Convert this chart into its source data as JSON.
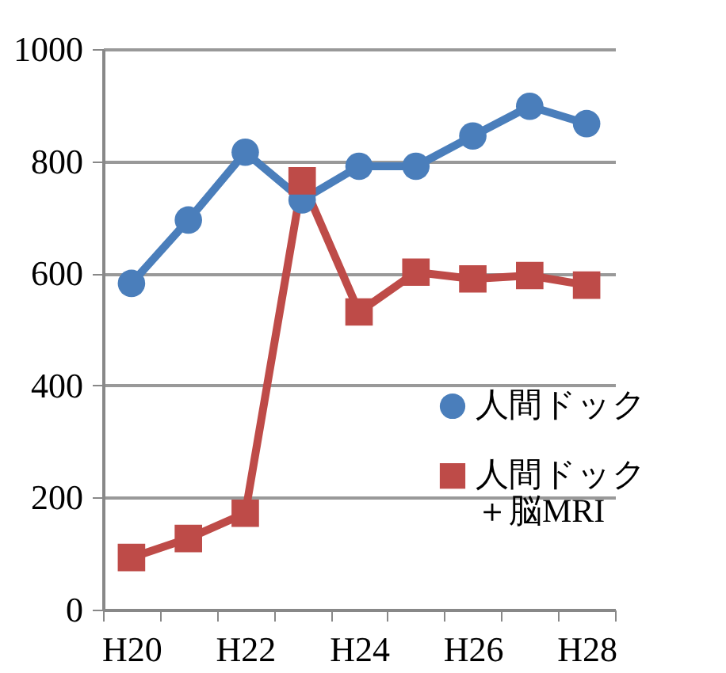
{
  "chart_data": {
    "type": "line",
    "categories": [
      "H20",
      null,
      "H22",
      null,
      "H24",
      null,
      "H26",
      null,
      "H28"
    ],
    "series": [
      {
        "name": "人間ドック",
        "color": "#4a7ebb",
        "marker": "circle",
        "values": [
          582,
          695,
          816,
          731,
          791,
          791,
          845,
          898,
          867
        ]
      },
      {
        "name": "人間ドック＋脳MRI",
        "color": "#be4b48",
        "marker": "square",
        "values": [
          93,
          127,
          172,
          765,
          531,
          602,
          590,
          596,
          579
        ]
      }
    ],
    "ylim": [
      0,
      1000
    ],
    "yticks": [
      0,
      200,
      400,
      600,
      800,
      1000
    ],
    "grid": "y",
    "legend": "right"
  }
}
